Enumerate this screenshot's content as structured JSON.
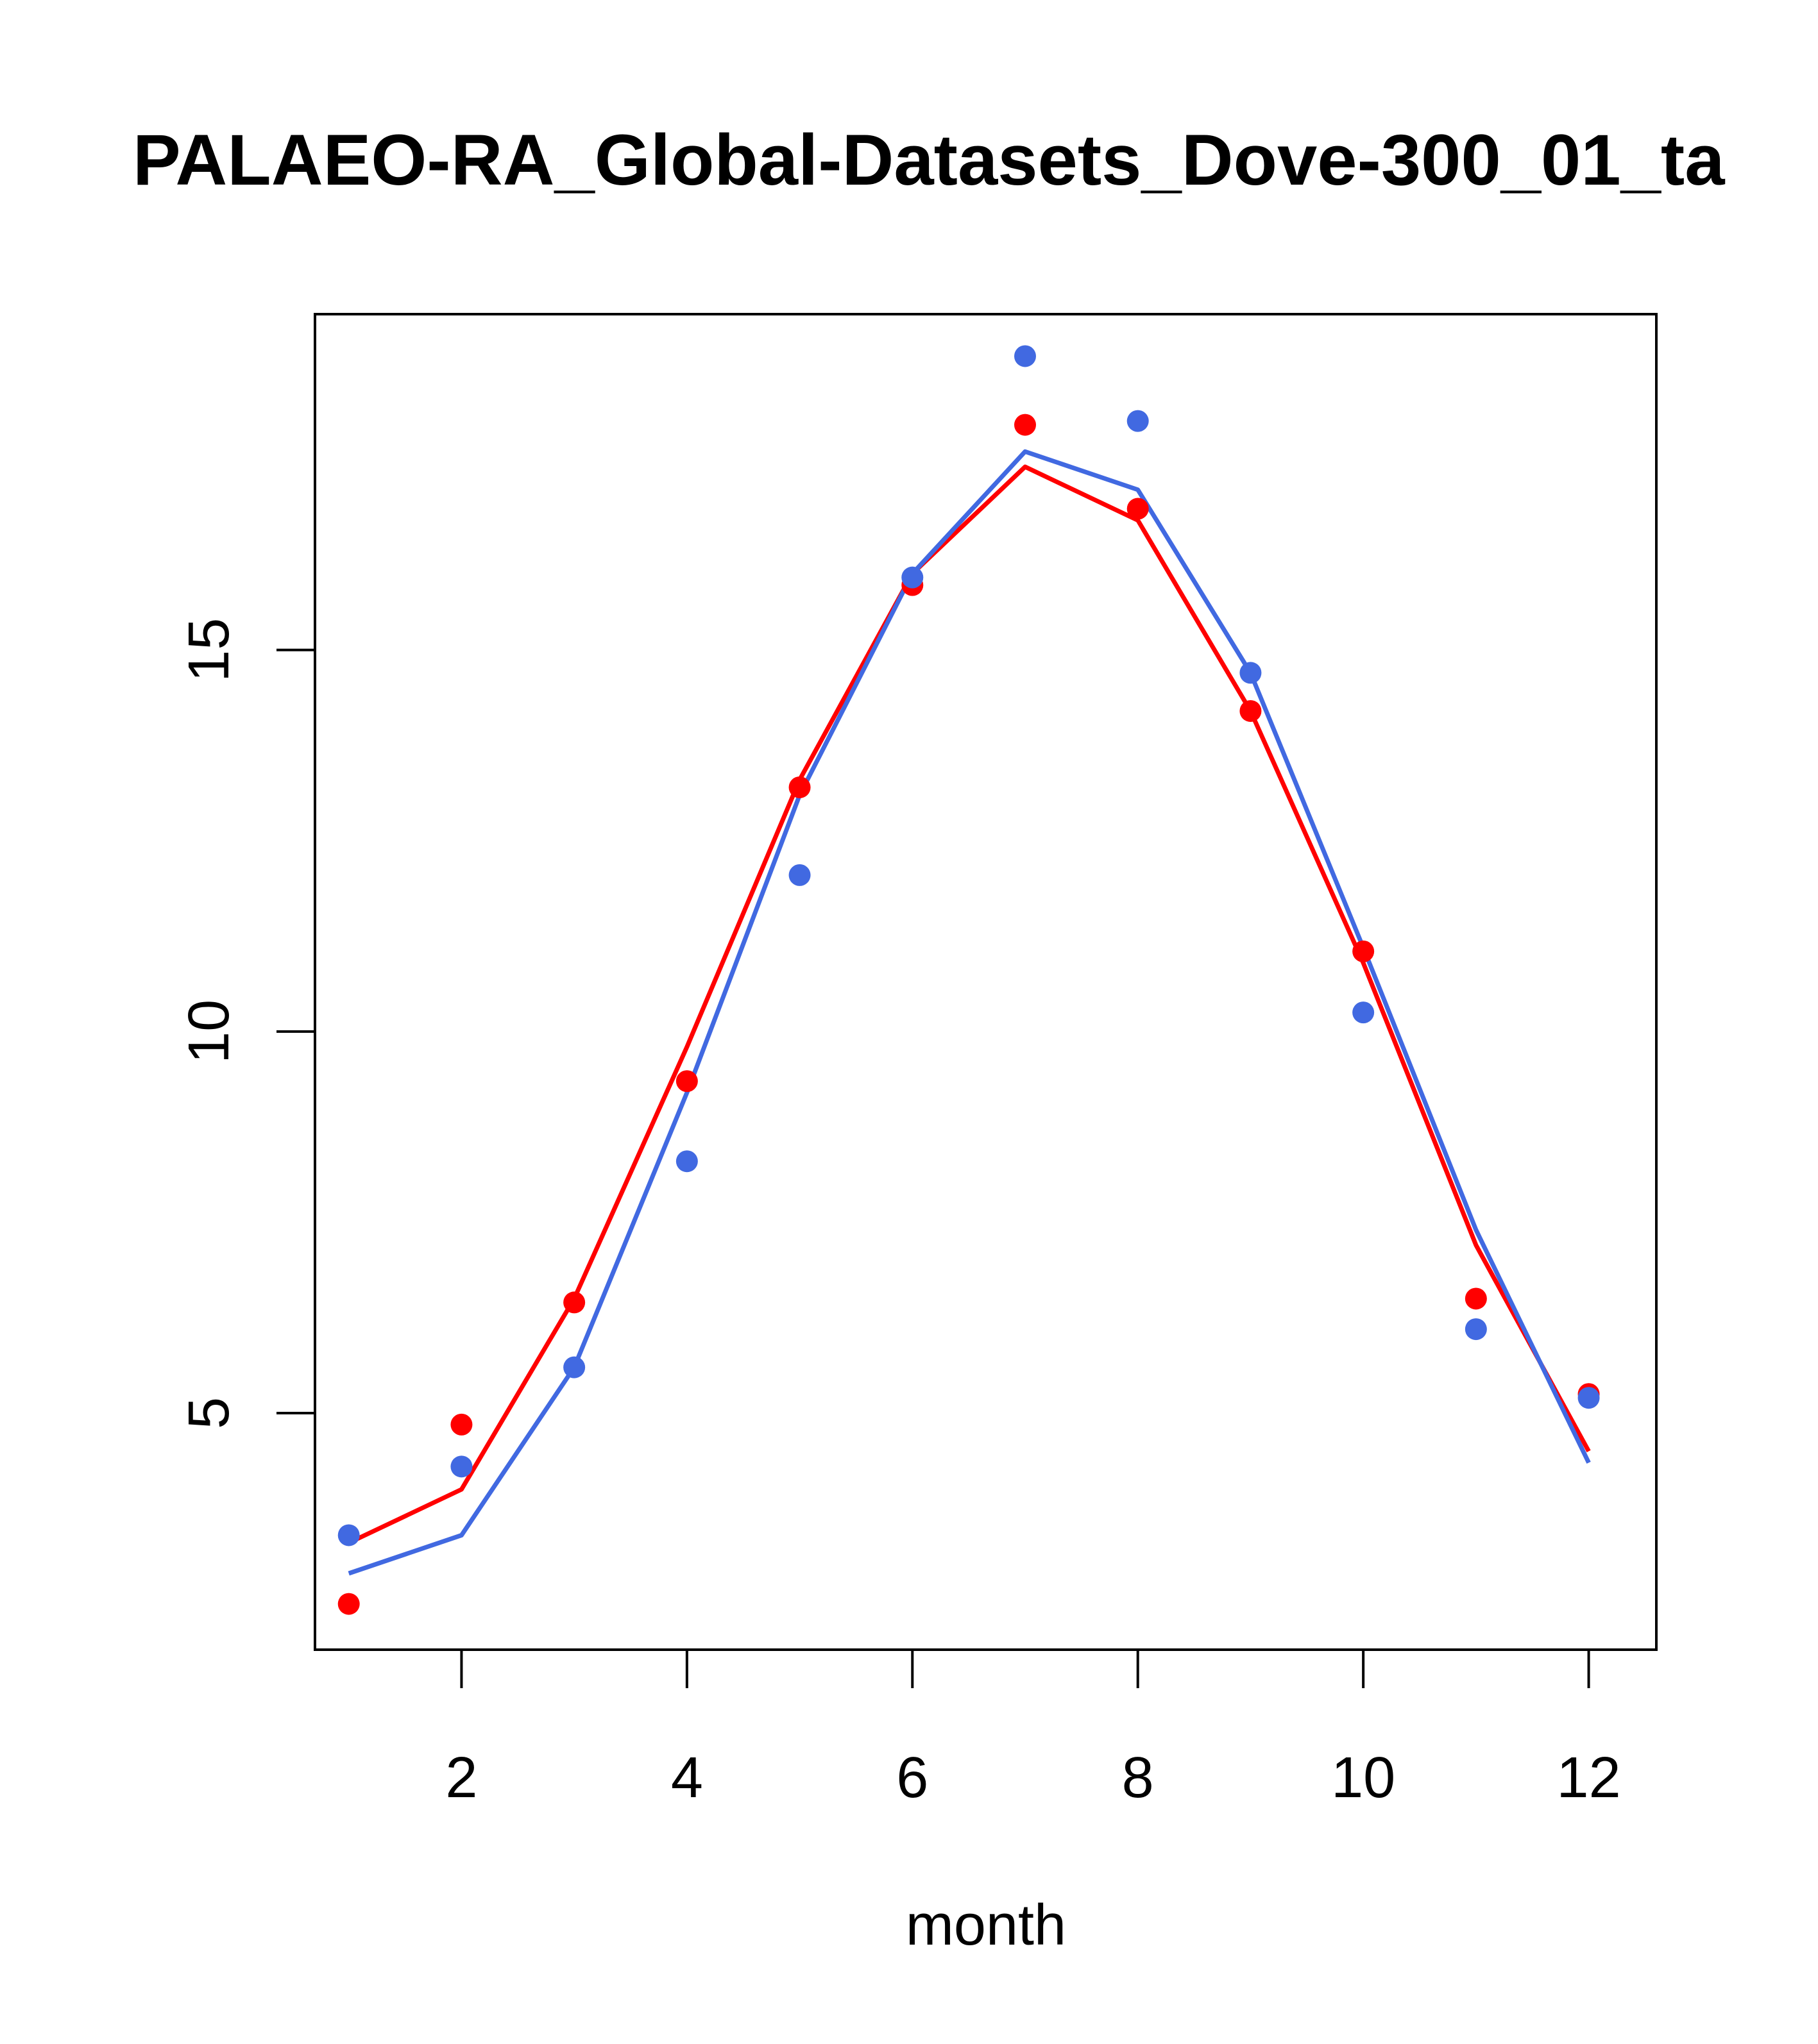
{
  "chart_data": {
    "type": "line",
    "title": "PALAEO-RA_Global-Datasets_Dove-300_01_ta",
    "xlabel": "month",
    "ylabel": "",
    "xlim": [
      0.7,
      12.6
    ],
    "ylim": [
      1.9,
      19.4
    ],
    "x_ticks": [
      2,
      4,
      6,
      8,
      10,
      12
    ],
    "x_tick_labels": [
      "2",
      "4",
      "6",
      "8",
      "10",
      "12"
    ],
    "y_ticks": [
      5,
      10,
      15
    ],
    "y_tick_labels": [
      "5",
      "10",
      "15"
    ],
    "grid": false,
    "legend": "none",
    "x": [
      1,
      2,
      3,
      4,
      5,
      6,
      7,
      8,
      9,
      10,
      11,
      12
    ],
    "series": [
      {
        "color": "#ff0000",
        "line": [
          3.3,
          4.0,
          6.5,
          9.8,
          13.3,
          16.0,
          17.4,
          16.7,
          14.2,
          10.9,
          7.2,
          4.5
        ],
        "points": [
          2.5,
          4.85,
          6.45,
          9.35,
          13.2,
          15.85,
          17.95,
          16.85,
          14.2,
          11.05,
          6.5,
          5.25
        ]
      },
      {
        "color": "#4169e1",
        "line": [
          2.9,
          3.4,
          5.6,
          9.2,
          13.1,
          16.0,
          17.6,
          17.1,
          14.7,
          11.1,
          7.4,
          4.35
        ],
        "points": [
          3.4,
          4.3,
          5.6,
          8.3,
          12.05,
          15.95,
          18.85,
          18.0,
          14.7,
          10.25,
          6.1,
          5.2
        ]
      }
    ]
  }
}
